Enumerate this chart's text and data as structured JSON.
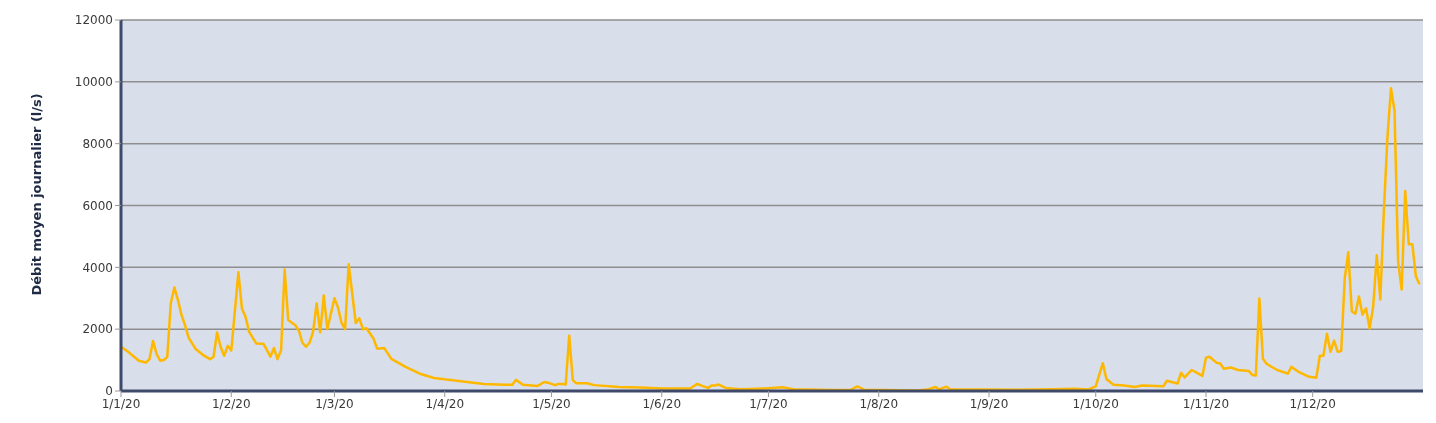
{
  "chart_data": {
    "type": "line",
    "ylabel": "Débit moyen journalier (l/s)",
    "xlim": [
      "2020-01-01",
      "2021-01-01"
    ],
    "ylim": [
      0,
      12000
    ],
    "yticks": [
      0,
      2000,
      4000,
      6000,
      8000,
      10000,
      12000
    ],
    "xticks": [
      {
        "value": "2020-01-01",
        "label": "1/1/20"
      },
      {
        "value": "2020-02-01",
        "label": "1/2/20"
      },
      {
        "value": "2020-03-01",
        "label": "1/3/20"
      },
      {
        "value": "2020-04-01",
        "label": "1/4/20"
      },
      {
        "value": "2020-05-01",
        "label": "1/5/20"
      },
      {
        "value": "2020-06-01",
        "label": "1/6/20"
      },
      {
        "value": "2020-07-01",
        "label": "1/7/20"
      },
      {
        "value": "2020-08-01",
        "label": "1/8/20"
      },
      {
        "value": "2020-09-01",
        "label": "1/9/20"
      },
      {
        "value": "2020-10-01",
        "label": "1/10/20"
      },
      {
        "value": "2020-11-01",
        "label": "1/11/20"
      },
      {
        "value": "2020-12-01",
        "label": "1/12/20"
      }
    ],
    "grid": "y",
    "marker": "none",
    "line_style": "solid",
    "x": [
      "2020-01-01",
      "2020-01-03",
      "2020-01-04",
      "2020-01-06",
      "2020-01-08",
      "2020-01-09",
      "2020-01-10",
      "2020-01-11",
      "2020-01-12",
      "2020-01-13",
      "2020-01-14",
      "2020-01-15",
      "2020-01-16",
      "2020-01-17",
      "2020-01-18",
      "2020-01-19",
      "2020-01-20",
      "2020-01-21",
      "2020-01-22",
      "2020-01-24",
      "2020-01-26",
      "2020-01-27",
      "2020-01-28",
      "2020-01-29",
      "2020-01-30",
      "2020-01-31",
      "2020-02-01",
      "2020-02-02",
      "2020-02-03",
      "2020-02-04",
      "2020-02-05",
      "2020-02-06",
      "2020-02-08",
      "2020-02-10",
      "2020-02-11",
      "2020-02-12",
      "2020-02-13",
      "2020-02-14",
      "2020-02-15",
      "2020-02-16",
      "2020-02-17",
      "2020-02-19",
      "2020-02-20",
      "2020-02-21",
      "2020-02-22",
      "2020-02-23",
      "2020-02-24",
      "2020-02-25",
      "2020-02-26",
      "2020-02-27",
      "2020-02-28",
      "2020-03-01",
      "2020-03-02",
      "2020-03-03",
      "2020-03-04",
      "2020-03-05",
      "2020-03-07",
      "2020-03-08",
      "2020-03-09",
      "2020-03-10",
      "2020-03-12",
      "2020-03-13",
      "2020-03-15",
      "2020-03-17",
      "2020-03-21",
      "2020-03-25",
      "2020-03-29",
      "2020-04-05",
      "2020-04-12",
      "2020-04-18",
      "2020-04-20",
      "2020-04-21",
      "2020-04-23",
      "2020-04-27",
      "2020-04-29",
      "2020-04-30",
      "2020-05-02",
      "2020-05-03",
      "2020-05-04",
      "2020-05-05",
      "2020-05-06",
      "2020-05-07",
      "2020-05-08",
      "2020-05-11",
      "2020-05-13",
      "2020-05-20",
      "2020-05-26",
      "2020-06-01",
      "2020-06-09",
      "2020-06-11",
      "2020-06-12",
      "2020-06-14",
      "2020-06-15",
      "2020-06-16",
      "2020-06-17",
      "2020-06-19",
      "2020-06-23",
      "2020-06-30",
      "2020-07-05",
      "2020-07-08",
      "2020-07-19",
      "2020-07-24",
      "2020-07-26",
      "2020-07-28",
      "2020-08-12",
      "2020-08-15",
      "2020-08-17",
      "2020-08-18",
      "2020-08-20",
      "2020-08-21",
      "2020-08-29",
      "2020-09-09",
      "2020-09-19",
      "2020-09-25",
      "2020-09-29",
      "2020-10-01",
      "2020-10-03",
      "2020-10-04",
      "2020-10-06",
      "2020-10-09",
      "2020-10-12",
      "2020-10-14",
      "2020-10-20",
      "2020-10-21",
      "2020-10-24",
      "2020-10-25",
      "2020-10-26",
      "2020-10-28",
      "2020-10-31",
      "2020-11-01",
      "2020-11-02",
      "2020-11-04",
      "2020-11-05",
      "2020-11-06",
      "2020-11-08",
      "2020-11-10",
      "2020-11-13",
      "2020-11-14",
      "2020-11-15",
      "2020-11-16",
      "2020-11-17",
      "2020-11-18",
      "2020-11-21",
      "2020-11-24",
      "2020-11-25",
      "2020-11-27",
      "2020-11-30",
      "2020-12-02",
      "2020-12-03",
      "2020-12-04",
      "2020-12-05",
      "2020-12-06",
      "2020-12-07",
      "2020-12-08",
      "2020-12-09",
      "2020-12-10",
      "2020-12-11",
      "2020-12-12",
      "2020-12-13",
      "2020-12-14",
      "2020-12-15",
      "2020-12-16",
      "2020-12-17",
      "2020-12-18",
      "2020-12-19",
      "2020-12-20",
      "2020-12-21",
      "2020-12-22",
      "2020-12-23",
      "2020-12-24",
      "2020-12-25",
      "2020-12-26",
      "2020-12-27",
      "2020-12-28",
      "2020-12-29",
      "2020-12-30",
      "2020-12-31"
    ],
    "series": [
      {
        "color": "#ffb800",
        "values": [
          1430,
          1270,
          1170,
          980,
          920,
          1030,
          1620,
          1200,
          980,
          1000,
          1100,
          2840,
          3350,
          2950,
          2460,
          2130,
          1730,
          1540,
          1360,
          1170,
          1030,
          1100,
          1890,
          1430,
          1140,
          1460,
          1310,
          2570,
          3840,
          2670,
          2400,
          1920,
          1540,
          1530,
          1330,
          1110,
          1390,
          1030,
          1320,
          3930,
          2300,
          2130,
          1950,
          1560,
          1430,
          1560,
          1920,
          2830,
          1900,
          3090,
          2000,
          3000,
          2700,
          2200,
          2000,
          4100,
          2200,
          2350,
          2000,
          2030,
          1690,
          1370,
          1390,
          1040,
          780,
          560,
          420,
          320,
          230,
          200,
          200,
          360,
          200,
          160,
          290,
          270,
          190,
          230,
          230,
          210,
          1790,
          350,
          250,
          250,
          190,
          130,
          110,
          80,
          80,
          230,
          180,
          100,
          180,
          180,
          210,
          100,
          60,
          80,
          120,
          60,
          30,
          30,
          150,
          40,
          20,
          60,
          130,
          50,
          140,
          60,
          50,
          40,
          60,
          70,
          50,
          150,
          900,
          390,
          200,
          180,
          130,
          180,
          150,
          330,
          240,
          590,
          440,
          680,
          490,
          1080,
          1110,
          910,
          890,
          720,
          760,
          680,
          650,
          520,
          500,
          2990,
          1040,
          880,
          680,
          560,
          780,
          620,
          460,
          430,
          1140,
          1140,
          1850,
          1270,
          1630,
          1270,
          1290,
          3640,
          4490,
          2570,
          2500,
          3060,
          2470,
          2670,
          2020,
          2730,
          4390,
          2960,
          5820,
          8200,
          9790,
          9070,
          4200,
          3280,
          6470,
          4750,
          4750,
          3710,
          3450
        ]
      }
    ]
  }
}
